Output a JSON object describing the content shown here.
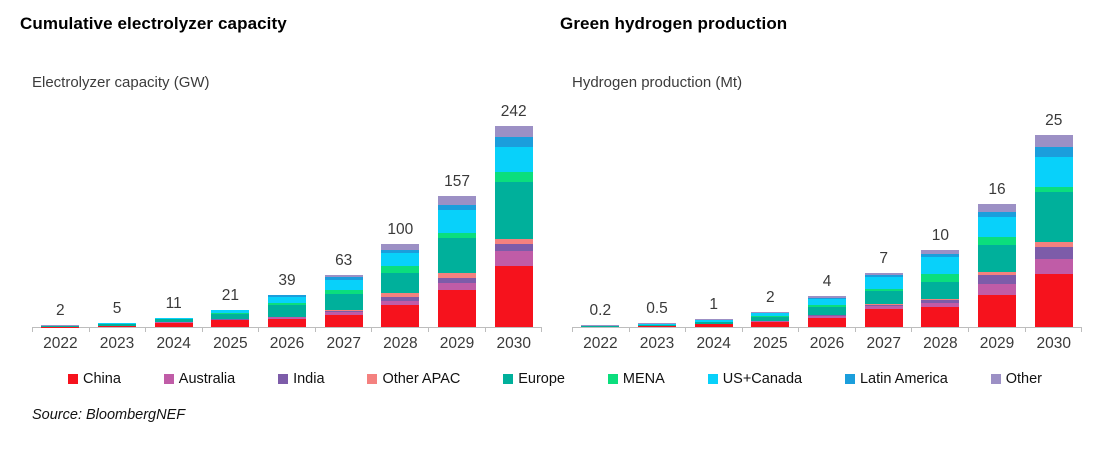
{
  "source_note": "Source: BloombergNEF",
  "colors": {
    "China": "#f6121d",
    "Australia": "#c05ca7",
    "India": "#7d5ca9",
    "Other APAC": "#f4817f",
    "Europe": "#00b09b",
    "MENA": "#0bde7d",
    "US+Canada": "#08d1fa",
    "Latin America": "#1b9edc",
    "Other": "#9c90c5"
  },
  "legend": {
    "items": [
      {
        "label": "China",
        "color": "#f6121d"
      },
      {
        "label": "Australia",
        "color": "#c05ca7"
      },
      {
        "label": "India",
        "color": "#7d5ca9"
      },
      {
        "label": "Other APAC",
        "color": "#f4817f"
      },
      {
        "label": "Europe",
        "color": "#00b09b"
      },
      {
        "label": "MENA",
        "color": "#0bde7d"
      },
      {
        "label": "US+Canada",
        "color": "#08d1fa"
      },
      {
        "label": "Latin America",
        "color": "#1b9edc"
      },
      {
        "label": "Other",
        "color": "#9c90c5"
      }
    ]
  },
  "chart_data": [
    {
      "type": "bar",
      "stacked": true,
      "title": "Cumulative electrolyzer capacity",
      "ylabel": "Electrolyzer capacity (GW)",
      "xlabel": "",
      "grid": false,
      "legend_position": "bottom",
      "ylim": [
        0,
        245
      ],
      "categories": [
        "2022",
        "2023",
        "2024",
        "2025",
        "2026",
        "2027",
        "2028",
        "2029",
        "2030"
      ],
      "totals": [
        2,
        5,
        11,
        21,
        39,
        63,
        100,
        157,
        242
      ],
      "totals_labels": [
        "2",
        "5",
        "11",
        "21",
        "39",
        "63",
        "100",
        "157",
        "242"
      ],
      "series": [
        {
          "name": "China",
          "values": [
            0.3,
            1.5,
            5,
            8,
            10,
            15,
            26,
            44,
            73
          ]
        },
        {
          "name": "Australia",
          "values": [
            0,
            0.3,
            0.5,
            1,
            1.5,
            2.5,
            5,
            9,
            18
          ]
        },
        {
          "name": "India",
          "values": [
            0,
            0,
            0,
            0.5,
            0.5,
            1.5,
            5,
            6,
            9
          ]
        },
        {
          "name": "Other APAC",
          "values": [
            0,
            0,
            0.2,
            0.5,
            0.5,
            1.5,
            5,
            6,
            6
          ]
        },
        {
          "name": "Europe",
          "values": [
            0.9,
            2,
            3.5,
            6,
            14,
            19.5,
            24,
            42,
            68
          ]
        },
        {
          "name": "MENA",
          "values": [
            0,
            0,
            0.3,
            0.5,
            2,
            4,
            8,
            6,
            12
          ]
        },
        {
          "name": "US+Canada",
          "values": [
            0.5,
            0.7,
            1,
            3.5,
            8,
            13,
            16,
            27,
            30
          ]
        },
        {
          "name": "Latin America",
          "values": [
            0,
            0,
            0,
            0,
            1.5,
            2.5,
            4,
            6,
            12
          ]
        },
        {
          "name": "Other",
          "values": [
            0.3,
            0.5,
            0.5,
            1,
            1,
            3.5,
            7,
            11,
            14
          ]
        }
      ]
    },
    {
      "type": "bar",
      "stacked": true,
      "title": "Green hydrogen production",
      "ylabel": "Hydrogen production (Mt)",
      "xlabel": "",
      "grid": false,
      "legend_position": "bottom",
      "ylim": [
        0,
        26.5
      ],
      "categories": [
        "2022",
        "2023",
        "2024",
        "2025",
        "2026",
        "2027",
        "2028",
        "2029",
        "2030"
      ],
      "totals": [
        0.2,
        0.5,
        1,
        2,
        4,
        7,
        10,
        16,
        25
      ],
      "totals_labels": [
        "0.2",
        "0.5",
        "1",
        "2",
        "4",
        "7",
        "10",
        "16",
        "25"
      ],
      "series": [
        {
          "name": "China",
          "values": [
            0,
            0.15,
            0.4,
            0.7,
            1.2,
            2.3,
            2.6,
            4.2,
            6.9
          ]
        },
        {
          "name": "Australia",
          "values": [
            0,
            0,
            0,
            0.1,
            0.2,
            0.4,
            0.5,
            1.4,
            2.0
          ]
        },
        {
          "name": "India",
          "values": [
            0,
            0,
            0,
            0,
            0.1,
            0.2,
            0.4,
            1.2,
            1.5
          ]
        },
        {
          "name": "Other APAC",
          "values": [
            0,
            0,
            0,
            0,
            0.1,
            0.1,
            0.1,
            0.4,
            0.6
          ]
        },
        {
          "name": "Europe",
          "values": [
            0.1,
            0.15,
            0.3,
            0.5,
            1.0,
            1.7,
            2.3,
            3.5,
            6.5
          ]
        },
        {
          "name": "MENA",
          "values": [
            0,
            0,
            0,
            0.1,
            0.2,
            0.3,
            1.0,
            1.0,
            0.7
          ]
        },
        {
          "name": "US+Canada",
          "values": [
            0,
            0.1,
            0.2,
            0.4,
            0.9,
            1.5,
            2.2,
            2.6,
            3.9
          ]
        },
        {
          "name": "Latin America",
          "values": [
            0,
            0,
            0,
            0,
            0.1,
            0.2,
            0.4,
            0.65,
            1.3
          ]
        },
        {
          "name": "Other",
          "values": [
            0.1,
            0.1,
            0.1,
            0.2,
            0.2,
            0.3,
            0.5,
            1.05,
            1.6
          ]
        }
      ]
    }
  ]
}
